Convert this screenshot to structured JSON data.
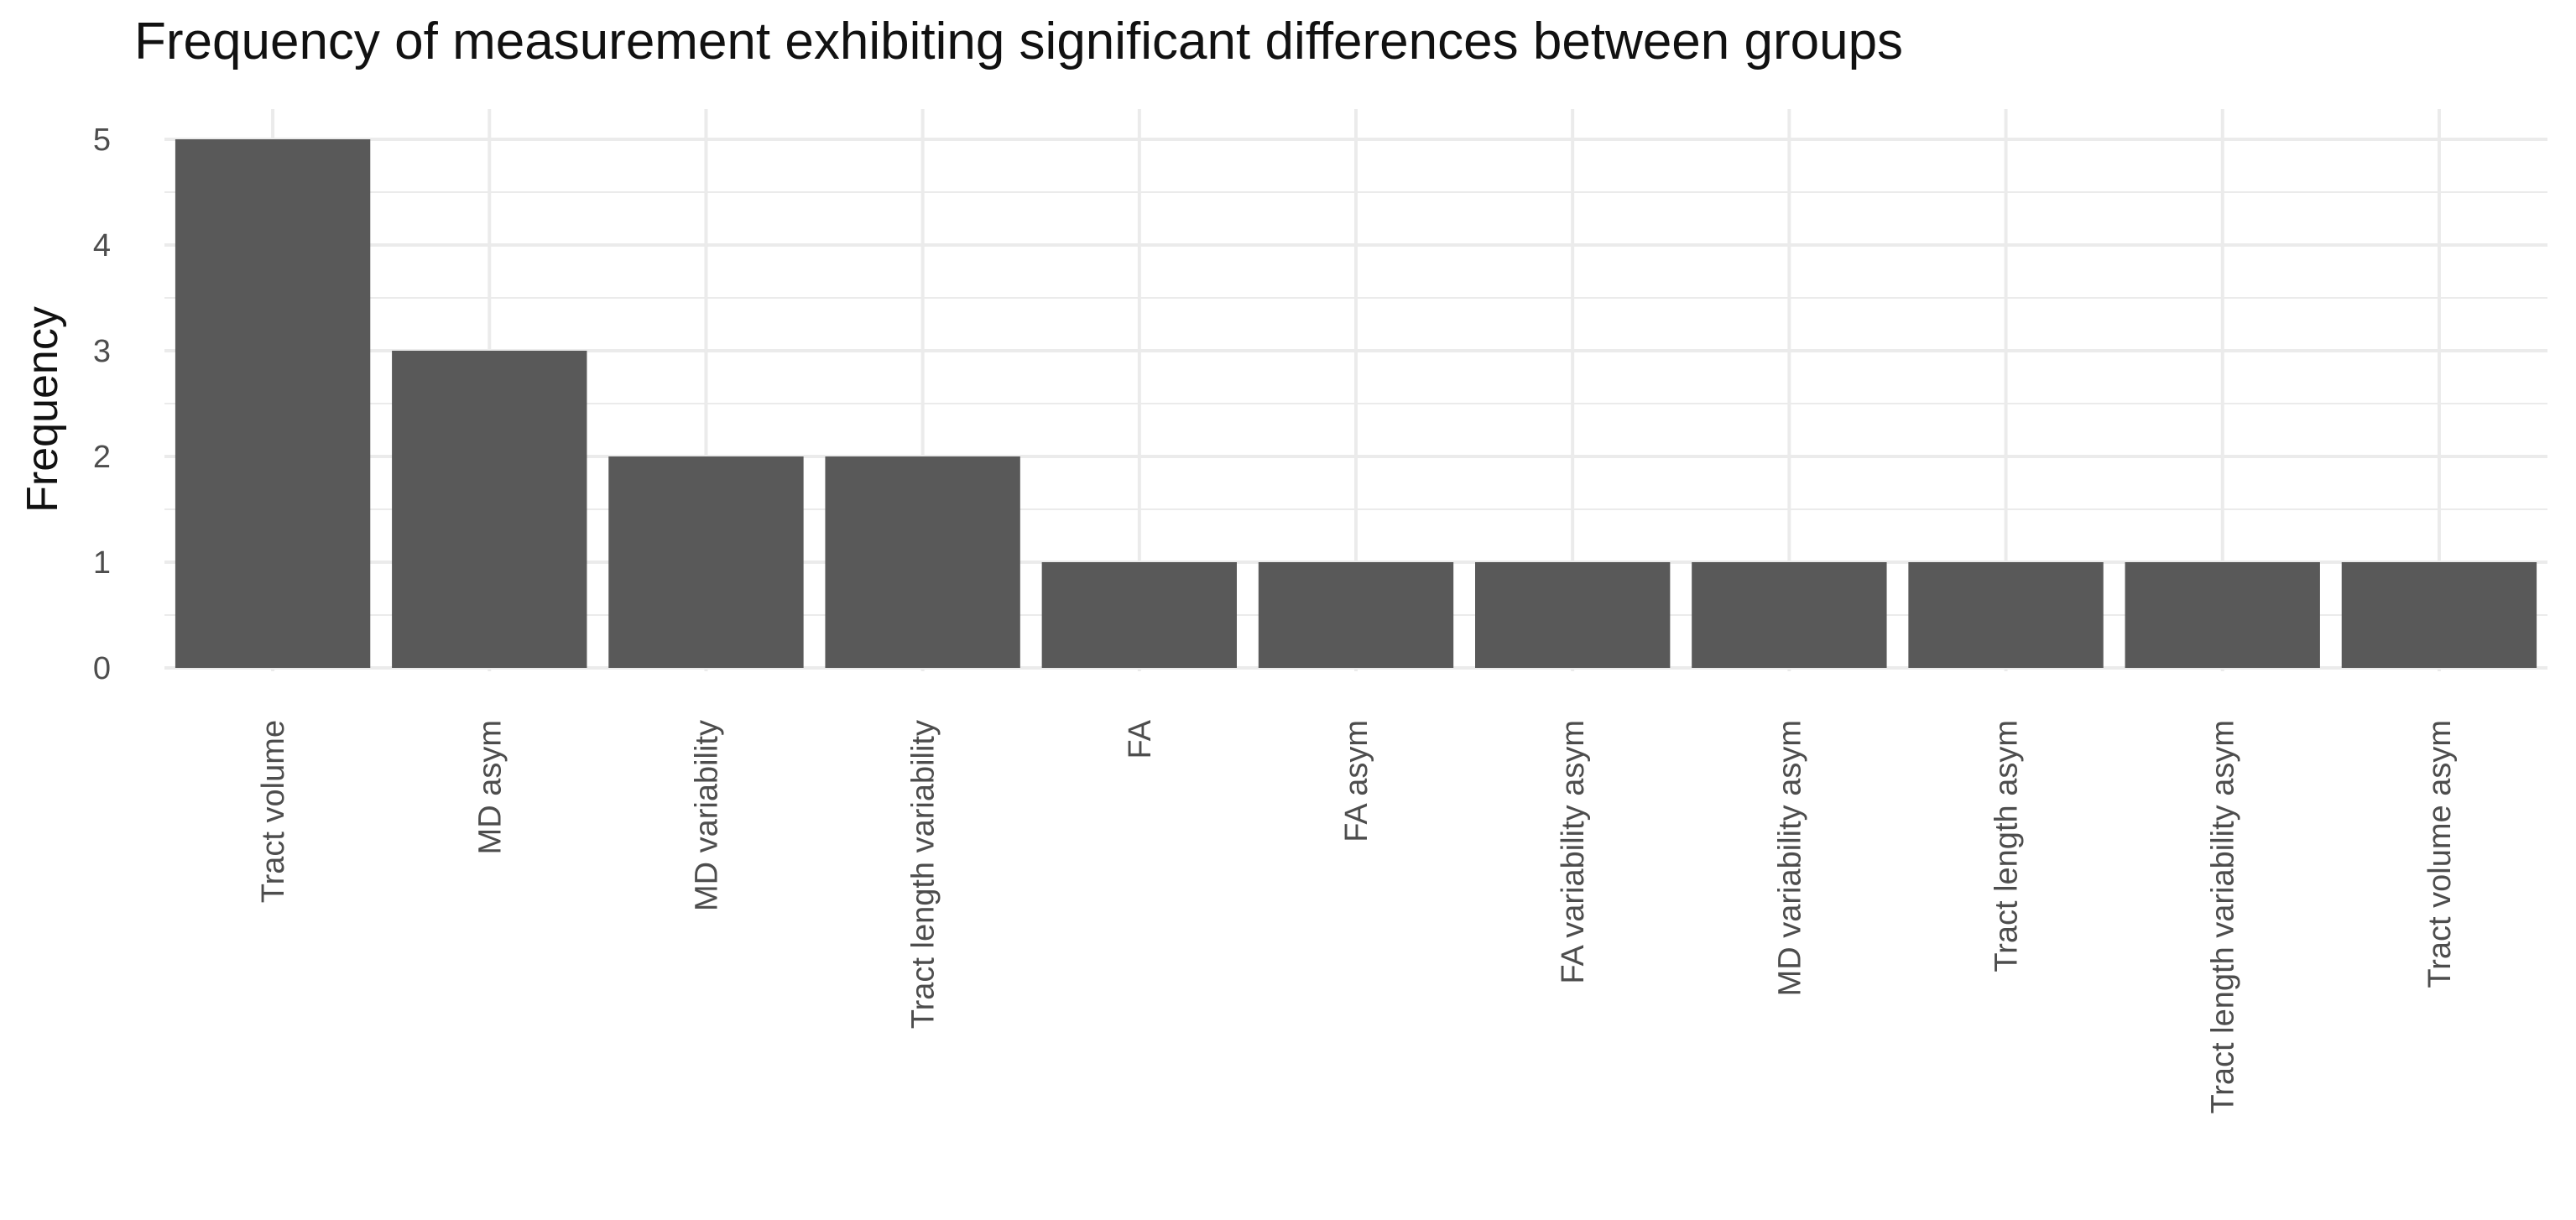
{
  "chart_data": {
    "type": "bar",
    "title": "Frequency of measurement exhibiting significant differences between groups",
    "xlabel": "",
    "ylabel": "Frequency",
    "categories": [
      "Tract volume",
      "MD asym",
      "MD variability",
      "Tract length variability",
      "FA",
      "FA asym",
      "FA variability asym",
      "MD variability asym",
      "Tract length asym",
      "Tract length variability asym",
      "Tract volume asym"
    ],
    "values": [
      5,
      3,
      2,
      2,
      1,
      1,
      1,
      1,
      1,
      1,
      1
    ],
    "ylim": [
      0,
      5
    ],
    "yticks": [
      0,
      1,
      2,
      3,
      4,
      5
    ],
    "grid": true,
    "legend": "none",
    "bar_color": "#595959",
    "grid_color": "#ebebeb"
  }
}
